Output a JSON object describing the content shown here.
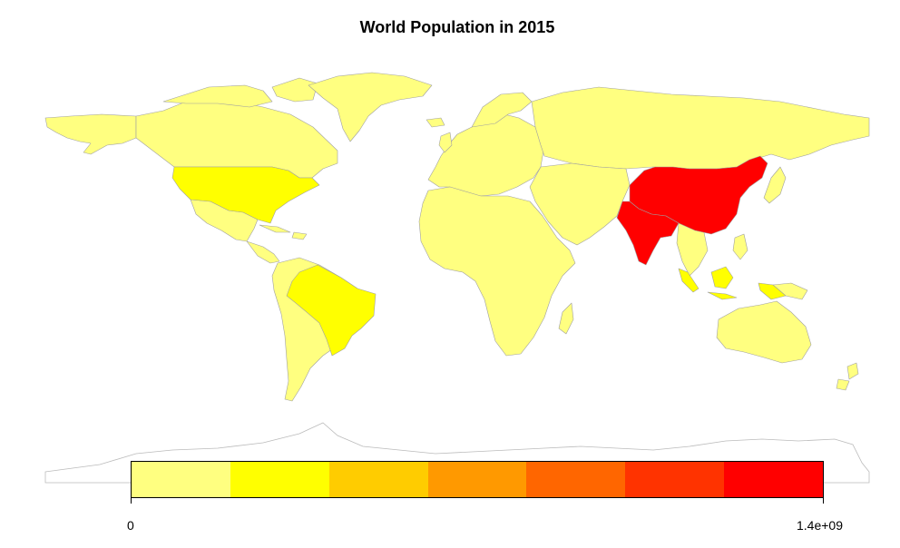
{
  "title": "World Population in 2015",
  "legend": {
    "min_label": "0",
    "max_label": "1.4e+09",
    "colors": [
      "#FFFF80",
      "#FFFF00",
      "#FFCC00",
      "#FF9900",
      "#FF6600",
      "#FF3300",
      "#FF0000"
    ]
  },
  "colors": {
    "default_country": "#FFFF80",
    "mid_country": "#FFFF00",
    "top_country": "#FF0000",
    "border": "#A0A0A0",
    "antarctica_border": "#BBBBBB"
  },
  "chart_data": {
    "type": "choropleth",
    "title": "World Population in 2015",
    "scale_range": [
      0,
      1400000000
    ],
    "highlighted": [
      {
        "region": "China",
        "class": 7
      },
      {
        "region": "India",
        "class": 7
      },
      {
        "region": "United States",
        "class": 2
      },
      {
        "region": "Brazil",
        "class": 2
      },
      {
        "region": "Indonesia",
        "class": 2
      }
    ]
  }
}
